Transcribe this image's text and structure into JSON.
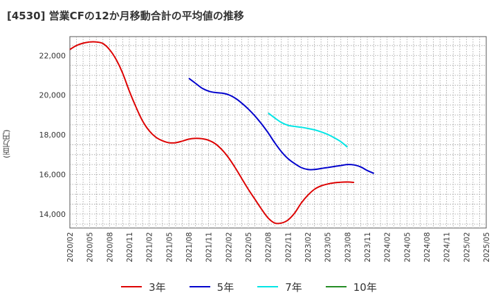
{
  "title": "[4530]  営業CFの12か月移動合計の平均値の推移",
  "y_unit_label": "(百万円)",
  "colors": {
    "3年": "#dd0000",
    "5年": "#0000cc",
    "7年": "#00e5e5",
    "10年": "#228b22"
  },
  "chart_data": {
    "type": "line",
    "title": "[4530]  営業CFの12か月移動合計の平均値の推移",
    "ylabel": "(百万円)",
    "xlabel": "",
    "ylim": [
      13300,
      22950
    ],
    "yticks": [
      14000,
      16000,
      18000,
      20000,
      22000
    ],
    "ytick_labels": [
      "14,000",
      "16,000",
      "18,000",
      "20,000",
      "22,000"
    ],
    "x_categories": [
      "2020/02",
      "2020/05",
      "2020/08",
      "2020/11",
      "2021/02",
      "2021/05",
      "2021/08",
      "2021/11",
      "2022/02",
      "2022/05",
      "2022/08",
      "2022/11",
      "2023/02",
      "2023/05",
      "2023/08",
      "2023/11",
      "2024/02",
      "2024/05",
      "2024/08",
      "2024/11",
      "2025/02",
      "2025/05"
    ],
    "grid": true,
    "legend_position": "bottom",
    "series": [
      {
        "name": "3年",
        "color": "#dd0000",
        "start_index": 0,
        "values": [
          22300,
          22500,
          22620,
          22680,
          22680,
          22600,
          22300,
          21800,
          21100,
          20200,
          19400,
          18700,
          18200,
          17880,
          17700,
          17600,
          17600,
          17680,
          17780,
          17820,
          17800,
          17720,
          17550,
          17250,
          16850,
          16350,
          15800,
          15250,
          14750,
          14250,
          13800,
          13550,
          13550,
          13700,
          14050,
          14550,
          14950,
          15250,
          15420,
          15520,
          15580,
          15610,
          15620,
          15600
        ]
      },
      {
        "name": "5年",
        "color": "#0000cc",
        "start_index": 18,
        "values": [
          20850,
          20600,
          20350,
          20200,
          20130,
          20100,
          20020,
          19850,
          19600,
          19300,
          18950,
          18550,
          18100,
          17600,
          17150,
          16800,
          16550,
          16350,
          16250,
          16250,
          16300,
          16350,
          16400,
          16450,
          16500,
          16480,
          16380,
          16200,
          16050
        ]
      },
      {
        "name": "7年",
        "color": "#00e5e5",
        "start_index": 30,
        "values": [
          19100,
          18850,
          18620,
          18480,
          18420,
          18380,
          18320,
          18250,
          18150,
          18020,
          17850,
          17650,
          17380
        ]
      },
      {
        "name": "10年",
        "color": "#228b22",
        "start_index": 0,
        "values": []
      }
    ]
  }
}
